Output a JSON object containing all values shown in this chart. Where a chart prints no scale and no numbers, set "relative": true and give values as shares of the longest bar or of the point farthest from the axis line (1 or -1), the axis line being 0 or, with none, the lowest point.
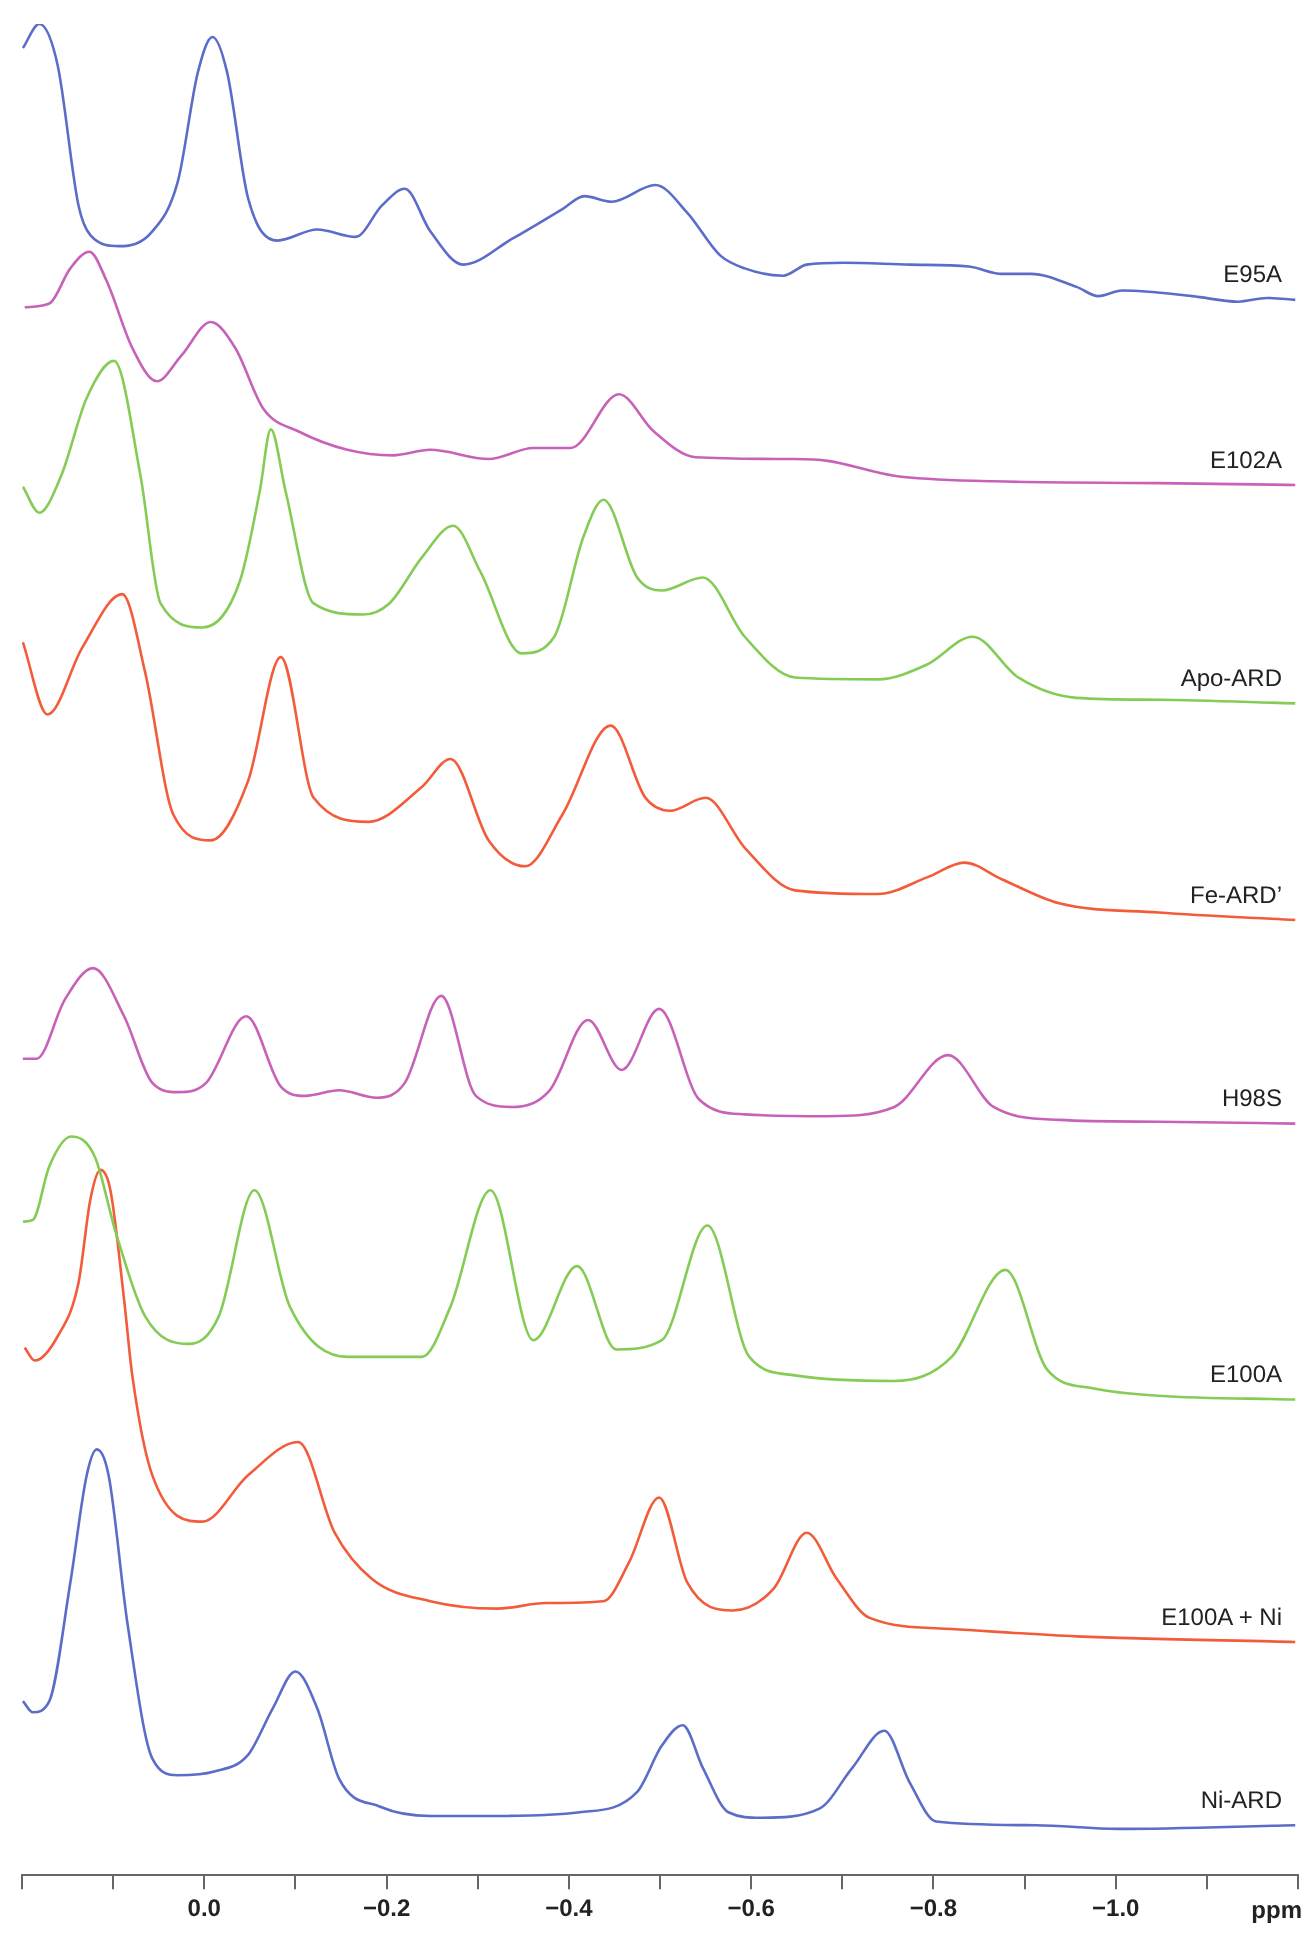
{
  "chart_data": {
    "type": "line",
    "relative": true,
    "xlabel": "ppm",
    "xlim": [
      0.2,
      -1.2
    ],
    "xticks": [
      {
        "value": 0.2,
        "label": null
      },
      {
        "value": 0.1,
        "label": null
      },
      {
        "value": 0,
        "label": "0.0"
      },
      {
        "value": -0.1,
        "label": null
      },
      {
        "value": -0.2,
        "label": "−0.2"
      },
      {
        "value": -0.3,
        "label": null
      },
      {
        "value": -0.4,
        "label": "−0.4"
      },
      {
        "value": -0.5,
        "label": null
      },
      {
        "value": -0.6,
        "label": "−0.6"
      },
      {
        "value": -0.7,
        "label": null
      },
      {
        "value": -0.8,
        "label": "−0.8"
      },
      {
        "value": -0.9,
        "label": null
      },
      {
        "value": -1.0,
        "label": "−1.0"
      },
      {
        "value": -1.1,
        "label": null
      },
      {
        "value": -1.2,
        "label": null
      }
    ],
    "grid": false,
    "legend": false,
    "marker": "none",
    "line_style": "solid",
    "series": [
      {
        "name": "E95A",
        "color": "#5b6dc8",
        "x": [
          0.199,
          0.181,
          0.161,
          0.138,
          0.125,
          0.093,
          0.057,
          0.029,
          0.007,
          -0.009,
          -0.025,
          -0.048,
          -0.08,
          -0.124,
          -0.166,
          -0.195,
          -0.22,
          -0.248,
          -0.284,
          -0.338,
          -0.393,
          -0.417,
          -0.447,
          -0.495,
          -0.53,
          -0.566,
          -0.593,
          -0.635,
          -0.661,
          -0.702,
          -0.774,
          -0.839,
          -0.875,
          -0.907,
          -0.957,
          -0.981,
          -1.007,
          -1.084,
          -1.134,
          -1.166,
          -1.197
        ],
        "values": [
          0.987,
          1.0,
          0.978,
          0.902,
          0.886,
          0.88,
          0.888,
          0.915,
          0.974,
          0.993,
          0.974,
          0.906,
          0.883,
          0.889,
          0.885,
          0.902,
          0.911,
          0.888,
          0.87,
          0.884,
          0.9,
          0.907,
          0.904,
          0.913,
          0.898,
          0.875,
          0.868,
          0.864,
          0.87,
          0.871,
          0.87,
          0.869,
          0.865,
          0.865,
          0.858,
          0.853,
          0.856,
          0.853,
          0.85,
          0.852,
          0.851
        ]
      },
      {
        "name": "E102A",
        "color": "#c862b8",
        "x": [
          0.197,
          0.17,
          0.147,
          0.126,
          0.107,
          0.079,
          0.052,
          0.025,
          -0.007,
          -0.034,
          -0.065,
          -0.103,
          -0.157,
          -0.207,
          -0.248,
          -0.312,
          -0.361,
          -0.402,
          -0.455,
          -0.493,
          -0.539,
          -0.648,
          -0.684,
          -0.757,
          -0.866,
          -1.047,
          -1.197
        ],
        "values": [
          0.847,
          0.849,
          0.868,
          0.877,
          0.861,
          0.825,
          0.807,
          0.821,
          0.839,
          0.825,
          0.792,
          0.78,
          0.77,
          0.767,
          0.77,
          0.765,
          0.771,
          0.771,
          0.8,
          0.78,
          0.766,
          0.765,
          0.764,
          0.756,
          0.753,
          0.752,
          0.751
        ]
      },
      {
        "name": "Apo-ARD",
        "color": "#84cc55",
        "x": [
          0.199,
          0.181,
          0.157,
          0.129,
          0.099,
          0.07,
          0.048,
          0.002,
          -0.039,
          -0.061,
          -0.073,
          -0.089,
          -0.12,
          -0.174,
          -0.203,
          -0.239,
          -0.273,
          -0.303,
          -0.348,
          -0.384,
          -0.416,
          -0.438,
          -0.475,
          -0.502,
          -0.547,
          -0.593,
          -0.648,
          -0.739,
          -0.793,
          -0.843,
          -0.893,
          -0.957,
          -1.047,
          -1.197
        ],
        "values": [
          0.75,
          0.736,
          0.756,
          0.798,
          0.818,
          0.756,
          0.687,
          0.674,
          0.699,
          0.748,
          0.781,
          0.748,
          0.687,
          0.681,
          0.687,
          0.712,
          0.729,
          0.704,
          0.66,
          0.669,
          0.723,
          0.743,
          0.701,
          0.694,
          0.701,
          0.669,
          0.647,
          0.646,
          0.654,
          0.669,
          0.647,
          0.636,
          0.635,
          0.633
        ]
      },
      {
        "name": "Fe-ARD’",
        "color": "#f25c3a",
        "x": [
          0.199,
          0.172,
          0.134,
          0.09,
          0.065,
          0.034,
          -0.007,
          -0.048,
          -0.084,
          -0.12,
          -0.18,
          -0.239,
          -0.27,
          -0.312,
          -0.352,
          -0.393,
          -0.446,
          -0.484,
          -0.511,
          -0.55,
          -0.593,
          -0.648,
          -0.739,
          -0.793,
          -0.834,
          -0.875,
          -0.938,
          -1.047,
          -1.197
        ],
        "values": [
          0.666,
          0.627,
          0.663,
          0.692,
          0.65,
          0.573,
          0.559,
          0.591,
          0.658,
          0.582,
          0.569,
          0.588,
          0.603,
          0.559,
          0.545,
          0.573,
          0.621,
          0.582,
          0.575,
          0.582,
          0.555,
          0.532,
          0.53,
          0.539,
          0.547,
          0.538,
          0.525,
          0.52,
          0.516
        ]
      },
      {
        "name": "H98S",
        "color": "#c862b8",
        "x": [
          0.199,
          0.184,
          0.153,
          0.122,
          0.088,
          0.057,
          0.029,
          -0.002,
          -0.046,
          -0.084,
          -0.111,
          -0.148,
          -0.189,
          -0.22,
          -0.26,
          -0.298,
          -0.338,
          -0.379,
          -0.421,
          -0.458,
          -0.499,
          -0.543,
          -0.593,
          -0.684,
          -0.757,
          -0.816,
          -0.866,
          -0.938,
          -1.047,
          -1.197
        ],
        "values": [
          0.441,
          0.441,
          0.473,
          0.49,
          0.464,
          0.428,
          0.423,
          0.428,
          0.464,
          0.426,
          0.421,
          0.424,
          0.42,
          0.428,
          0.475,
          0.421,
          0.415,
          0.424,
          0.462,
          0.435,
          0.468,
          0.419,
          0.411,
          0.41,
          0.415,
          0.443,
          0.415,
          0.408,
          0.407,
          0.406
        ]
      },
      {
        "name": "E100A",
        "color": "#84cc55",
        "x": [
          0.199,
          0.188,
          0.17,
          0.146,
          0.12,
          0.097,
          0.065,
          0.017,
          -0.016,
          -0.055,
          -0.094,
          -0.157,
          -0.239,
          -0.27,
          -0.314,
          -0.361,
          -0.409,
          -0.452,
          -0.502,
          -0.552,
          -0.598,
          -0.648,
          -0.757,
          -0.82,
          -0.879,
          -0.925,
          -0.975,
          -1.047,
          -1.197
        ],
        "values": [
          0.353,
          0.354,
          0.383,
          0.399,
          0.388,
          0.347,
          0.302,
          0.287,
          0.302,
          0.37,
          0.307,
          0.28,
          0.28,
          0.307,
          0.37,
          0.289,
          0.329,
          0.284,
          0.289,
          0.351,
          0.28,
          0.27,
          0.267,
          0.28,
          0.327,
          0.273,
          0.263,
          0.259,
          0.257
        ]
      },
      {
        "name": "E100A + Ni",
        "color": "#f25c3a",
        "x": [
          0.197,
          0.186,
          0.161,
          0.138,
          0.125,
          0.114,
          0.103,
          0.088,
          0.079,
          0.057,
          0.002,
          -0.048,
          -0.103,
          -0.143,
          -0.184,
          -0.248,
          -0.321,
          -0.375,
          -0.438,
          -0.466,
          -0.499,
          -0.53,
          -0.58,
          -0.625,
          -0.661,
          -0.694,
          -0.73,
          -0.82,
          -0.957,
          -1.197
        ],
        "values": [
          0.285,
          0.278,
          0.291,
          0.32,
          0.365,
          0.381,
          0.37,
          0.311,
          0.27,
          0.216,
          0.191,
          0.216,
          0.234,
          0.185,
          0.16,
          0.148,
          0.144,
          0.147,
          0.148,
          0.169,
          0.204,
          0.158,
          0.143,
          0.155,
          0.185,
          0.16,
          0.139,
          0.133,
          0.129,
          0.126
        ]
      },
      {
        "name": "Ni-ARD",
        "color": "#5b6dc8",
        "x": [
          0.199,
          0.188,
          0.17,
          0.147,
          0.129,
          0.118,
          0.105,
          0.084,
          0.057,
          0.029,
          -0.011,
          -0.048,
          -0.075,
          -0.1,
          -0.124,
          -0.148,
          -0.193,
          -0.248,
          -0.321,
          -0.412,
          -0.475,
          -0.502,
          -0.525,
          -0.547,
          -0.575,
          -0.611,
          -0.675,
          -0.711,
          -0.746,
          -0.774,
          -0.803,
          -0.912,
          -1.002,
          -1.197
        ],
        "values": [
          0.094,
          0.088,
          0.094,
          0.158,
          0.216,
          0.23,
          0.216,
          0.135,
          0.063,
          0.054,
          0.056,
          0.065,
          0.09,
          0.11,
          0.09,
          0.052,
          0.037,
          0.032,
          0.032,
          0.034,
          0.045,
          0.07,
          0.081,
          0.058,
          0.034,
          0.031,
          0.036,
          0.058,
          0.078,
          0.05,
          0.029,
          0.027,
          0.025,
          0.027
        ]
      }
    ]
  }
}
